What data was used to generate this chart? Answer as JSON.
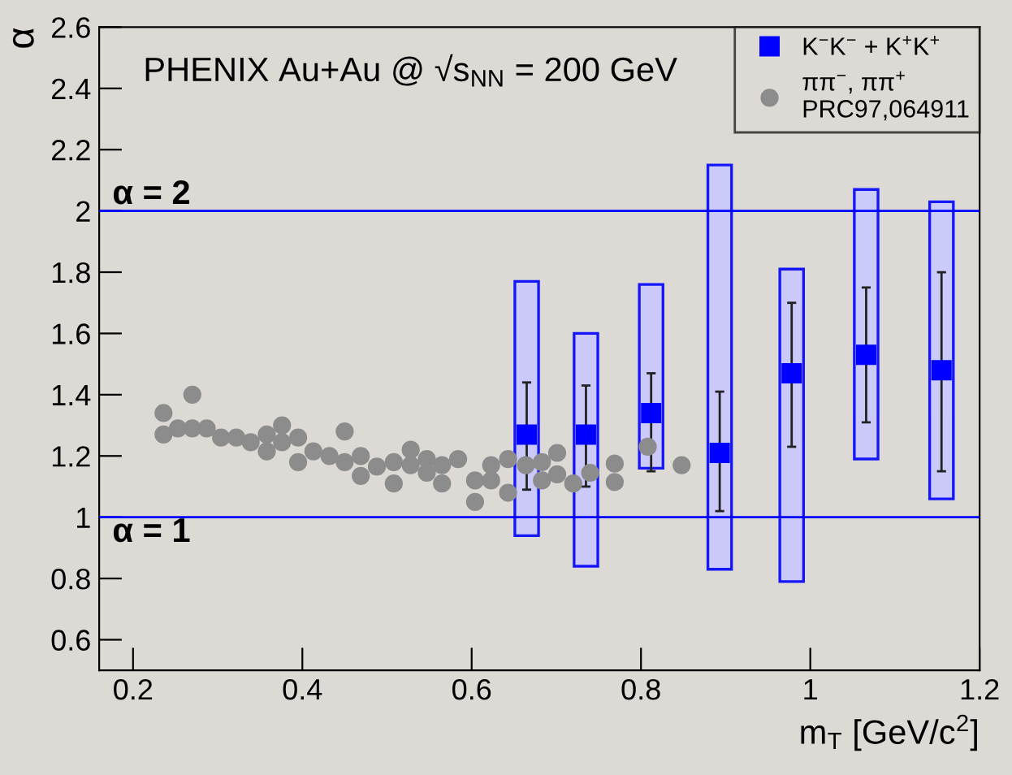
{
  "chart_data": {
    "type": "scatter",
    "title": "PHENIX Au+Au @ √s$_{NN}$ = 200 GeV",
    "xlabel": "m$_{T}$ [GeV/c$^{2}$]",
    "ylabel": "α",
    "xlim": [
      0.16,
      1.2
    ],
    "ylim": [
      0.5,
      2.6
    ],
    "xticks": [
      0.2,
      0.4,
      0.6,
      0.8,
      1,
      1.2
    ],
    "yticks": [
      0.6,
      0.8,
      1,
      1.2,
      1.4,
      1.6,
      1.8,
      2,
      2.2,
      2.4,
      2.6
    ],
    "grid": false,
    "legend": "top right",
    "ref_lines": [
      {
        "axis": "y",
        "value": 2,
        "label": "α = 2",
        "color": "#0000ff"
      },
      {
        "axis": "y",
        "value": 1,
        "label": "α = 1",
        "color": "#0000ff"
      }
    ],
    "series": [
      {
        "type": "bar",
        "color": "#c8c8ff",
        "x": [
          0.665,
          0.735,
          0.812,
          0.893,
          0.978,
          1.066,
          1.155
        ],
        "base": [
          0.94,
          0.84,
          1.16,
          0.83,
          0.79,
          1.19,
          1.06
        ],
        "values": [
          0.83,
          0.76,
          0.6,
          1.32,
          1.02,
          0.88,
          0.97
        ]
      },
      {
        "name": "ππ$^{−}$, ππ$^{+}$\nPRC97,064911",
        "marker": "circle",
        "color": "#8c8c8c",
        "x": [
          0.236,
          0.236,
          0.253,
          0.27,
          0.27,
          0.287,
          0.304,
          0.322,
          0.339,
          0.358,
          0.358,
          0.376,
          0.376,
          0.395,
          0.395,
          0.413,
          0.432,
          0.45,
          0.45,
          0.469,
          0.469,
          0.488,
          0.508,
          0.508,
          0.528,
          0.528,
          0.547,
          0.547,
          0.565,
          0.565,
          0.584,
          0.604,
          0.604,
          0.623,
          0.623,
          0.643,
          0.643,
          0.664,
          0.683,
          0.683,
          0.701,
          0.701,
          0.72,
          0.74,
          0.769,
          0.769,
          0.808,
          0.848
        ],
        "values": [
          1.34,
          1.27,
          1.29,
          1.4,
          1.29,
          1.29,
          1.26,
          1.26,
          1.245,
          1.27,
          1.215,
          1.3,
          1.245,
          1.26,
          1.18,
          1.215,
          1.2,
          1.28,
          1.18,
          1.2,
          1.135,
          1.165,
          1.18,
          1.11,
          1.22,
          1.17,
          1.19,
          1.145,
          1.17,
          1.11,
          1.19,
          1.12,
          1.05,
          1.17,
          1.12,
          1.19,
          1.08,
          1.17,
          1.18,
          1.12,
          1.21,
          1.14,
          1.11,
          1.145,
          1.175,
          1.115,
          1.23,
          1.17
        ]
      },
      {
        "name": "K$^{−}$K$^{−}$ + K$^{+}$K$^{+}$",
        "marker": "square",
        "color": "#0000ff",
        "x": [
          0.665,
          0.735,
          0.812,
          0.893,
          0.978,
          1.066,
          1.155
        ],
        "values": [
          1.27,
          1.27,
          1.34,
          1.21,
          1.47,
          1.53,
          1.48
        ],
        "errors": [
          [
            1.09,
            1.44
          ],
          [
            1.1,
            1.43
          ],
          [
            1.15,
            1.47
          ],
          [
            1.02,
            1.41
          ],
          [
            1.23,
            1.7
          ],
          [
            1.31,
            1.75
          ],
          [
            1.15,
            1.8
          ]
        ]
      }
    ]
  }
}
